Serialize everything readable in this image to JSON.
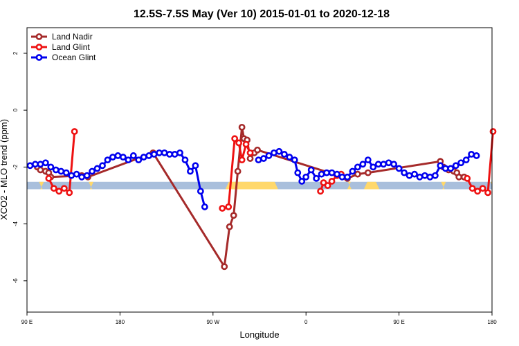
{
  "chart_data": {
    "type": "line",
    "title": "12.5S-7.5S May (Ver 10)   2015-01-01 to 2020-12-18",
    "xlabel": "Longitude",
    "ylabel": "XCO2 - MLO trend (ppm)",
    "xlim": [
      90,
      540
    ],
    "ylim": [
      -7.1,
      2.9
    ],
    "x_ticks": [
      {
        "value": 90,
        "label": "90 E"
      },
      {
        "value": 180,
        "label": "180"
      },
      {
        "value": 270,
        "label": "90 W"
      },
      {
        "value": 360,
        "label": "0"
      },
      {
        "value": 450,
        "label": "90 E"
      },
      {
        "value": 540,
        "label": "180"
      }
    ],
    "y_ticks": [
      {
        "value": 2,
        "label": "2"
      },
      {
        "value": 0,
        "label": "0"
      },
      {
        "value": -2,
        "label": "-2"
      },
      {
        "value": -4,
        "label": "-4"
      },
      {
        "value": -6,
        "label": "-6"
      }
    ],
    "legend_position": "top-left",
    "band": {
      "y_range": [
        -2.78,
        -2.52
      ],
      "color": "#a9bfdc",
      "highlight_color": "#ffd86b",
      "highlights_x": [
        [
          103,
          105
        ],
        [
          151,
          153
        ],
        [
          282,
          333
        ],
        [
          400,
          404
        ],
        [
          416,
          431
        ],
        [
          492,
          494
        ],
        [
          540,
          542
        ]
      ]
    },
    "series": [
      {
        "name": "Land Nadir",
        "color": "#a52a2a",
        "points": [
          [
            100,
            -2.0
          ],
          [
            103,
            -2.1
          ],
          [
            108,
            -2.15
          ],
          [
            111,
            -2.2
          ],
          [
            113,
            -2.35
          ],
          [
            143,
            -2.3
          ],
          [
            149,
            -2.35
          ],
          [
            212,
            -1.5
          ],
          [
            281,
            -5.5
          ],
          [
            286,
            -4.1
          ],
          [
            290,
            -3.7
          ],
          [
            294,
            -2.15
          ],
          [
            298,
            -0.6
          ],
          [
            300,
            -1.0
          ],
          [
            303,
            -1.05
          ],
          [
            306,
            -1.7
          ],
          [
            310,
            -1.5
          ],
          [
            313,
            -1.4
          ],
          [
            400,
            -2.4
          ],
          [
            410,
            -2.25
          ],
          [
            420,
            -2.2
          ],
          [
            490,
            -1.8
          ],
          [
            493,
            -2.0
          ],
          [
            498,
            -2.1
          ],
          [
            503,
            -2.15
          ],
          [
            506,
            -2.2
          ],
          [
            508,
            -2.35
          ],
          [
            513,
            -2.35
          ]
        ]
      },
      {
        "name": "Land Glint",
        "color": "#ee1111",
        "segments": [
          [
            [
              111,
              -2.4
            ],
            [
              116,
              -2.75
            ],
            [
              121,
              -2.85
            ],
            [
              126,
              -2.75
            ],
            [
              131,
              -2.9
            ],
            [
              136,
              -0.75
            ]
          ],
          [
            [
              279,
              -3.45
            ],
            [
              285,
              -3.4
            ],
            [
              291,
              -1.0
            ],
            [
              295,
              -1.15
            ],
            [
              298,
              -1.75
            ],
            [
              302,
              -1.2
            ],
            [
              306,
              -1.5
            ]
          ],
          [
            [
              374,
              -2.85
            ],
            [
              377,
              -2.55
            ],
            [
              381,
              -2.65
            ],
            [
              385,
              -2.5
            ],
            [
              390,
              -2.3
            ],
            [
              394,
              -2.25
            ]
          ],
          [
            [
              516,
              -2.4
            ],
            [
              521,
              -2.75
            ],
            [
              526,
              -2.85
            ],
            [
              531,
              -2.75
            ],
            [
              536,
              -2.9
            ],
            [
              541,
              -0.75
            ]
          ]
        ]
      },
      {
        "name": "Ocean Glint",
        "color": "#0000ee",
        "segments": [
          [
            [
              93,
              -1.95
            ],
            [
              98,
              -1.9
            ],
            [
              103,
              -1.9
            ],
            [
              108,
              -1.85
            ],
            [
              113,
              -2.0
            ],
            [
              118,
              -2.1
            ],
            [
              123,
              -2.15
            ],
            [
              128,
              -2.2
            ],
            [
              133,
              -2.3
            ],
            [
              138,
              -2.25
            ],
            [
              143,
              -2.35
            ],
            [
              148,
              -2.3
            ],
            [
              153,
              -2.15
            ],
            [
              158,
              -2.05
            ],
            [
              163,
              -1.95
            ],
            [
              168,
              -1.75
            ],
            [
              173,
              -1.65
            ],
            [
              178,
              -1.6
            ],
            [
              183,
              -1.65
            ],
            [
              188,
              -1.75
            ],
            [
              193,
              -1.6
            ],
            [
              198,
              -1.75
            ],
            [
              203,
              -1.65
            ],
            [
              208,
              -1.6
            ],
            [
              213,
              -1.55
            ],
            [
              218,
              -1.5
            ],
            [
              223,
              -1.5
            ],
            [
              228,
              -1.55
            ],
            [
              233,
              -1.55
            ],
            [
              238,
              -1.5
            ],
            [
              243,
              -1.75
            ],
            [
              248,
              -2.15
            ],
            [
              253,
              -1.95
            ],
            [
              258,
              -2.85
            ],
            [
              262,
              -3.4
            ]
          ],
          [
            [
              314,
              -1.75
            ],
            [
              319,
              -1.7
            ],
            [
              324,
              -1.6
            ],
            [
              329,
              -1.5
            ],
            [
              334,
              -1.45
            ],
            [
              339,
              -1.55
            ],
            [
              344,
              -1.65
            ],
            [
              349,
              -1.75
            ],
            [
              352,
              -2.2
            ],
            [
              356,
              -2.5
            ],
            [
              360,
              -2.35
            ],
            [
              365,
              -2.1
            ],
            [
              370,
              -2.4
            ],
            [
              375,
              -2.25
            ],
            [
              380,
              -2.2
            ],
            [
              385,
              -2.2
            ],
            [
              390,
              -2.25
            ],
            [
              395,
              -2.35
            ],
            [
              400,
              -2.35
            ],
            [
              405,
              -2.15
            ],
            [
              410,
              -2.0
            ],
            [
              415,
              -1.9
            ],
            [
              420,
              -1.75
            ],
            [
              425,
              -2.0
            ],
            [
              430,
              -1.9
            ],
            [
              435,
              -1.9
            ],
            [
              440,
              -1.85
            ],
            [
              445,
              -1.9
            ],
            [
              450,
              -2.05
            ],
            [
              455,
              -2.2
            ],
            [
              460,
              -2.3
            ],
            [
              465,
              -2.25
            ],
            [
              470,
              -2.35
            ],
            [
              475,
              -2.3
            ],
            [
              480,
              -2.35
            ],
            [
              485,
              -2.3
            ],
            [
              490,
              -1.95
            ],
            [
              495,
              -2.05
            ],
            [
              500,
              -2.05
            ],
            [
              505,
              -1.95
            ],
            [
              510,
              -1.85
            ],
            [
              515,
              -1.75
            ],
            [
              520,
              -1.55
            ],
            [
              525,
              -1.6
            ]
          ]
        ]
      }
    ]
  }
}
